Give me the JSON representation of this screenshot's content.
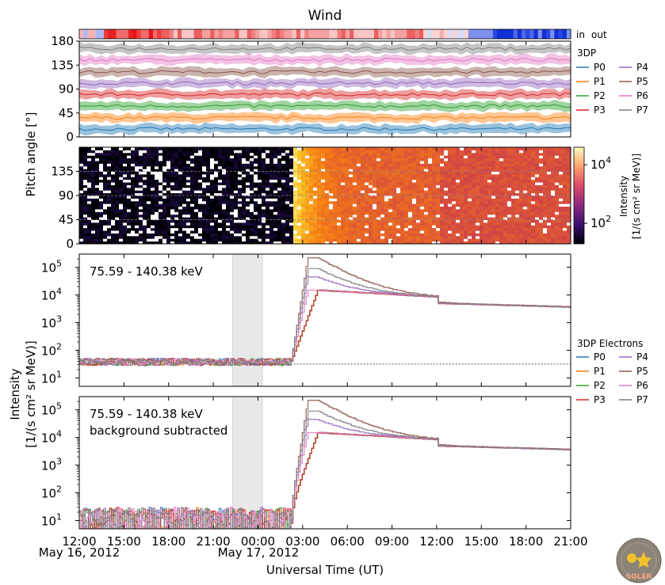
{
  "figure": {
    "title": "Wind",
    "inout": {
      "in": "in",
      "out": "out",
      "in_color": "#e8121b",
      "out_color": "#1030d8"
    },
    "logo": {
      "name": "SOLER",
      "text": "SOLER"
    }
  },
  "chart_data": [
    {
      "panel": "pitch-angle-coverage",
      "type": "area",
      "ylabel": "Pitch angle [°]",
      "ylim": [
        0,
        180
      ],
      "yticks": [
        "0",
        "45",
        "90",
        "135",
        "180"
      ],
      "legend": {
        "title": "3DP",
        "entries": [
          "P0",
          "P1",
          "P2",
          "P3",
          "P4",
          "P5",
          "P6",
          "P7"
        ],
        "placement": "right"
      },
      "series": [
        {
          "name": "P0",
          "color": "#1f77b4",
          "center": 15,
          "width": 16
        },
        {
          "name": "P1",
          "color": "#ff7f0e",
          "center": 36,
          "width": 16
        },
        {
          "name": "P2",
          "color": "#2ca02c",
          "center": 58,
          "width": 16
        },
        {
          "name": "P3",
          "color": "#d62728",
          "center": 80,
          "width": 16
        },
        {
          "name": "P4",
          "color": "#9467bd",
          "center": 101,
          "width": 16
        },
        {
          "name": "P5",
          "color": "#8c564b",
          "center": 122,
          "width": 16
        },
        {
          "name": "P6",
          "color": "#e377c2",
          "center": 145,
          "width": 16
        },
        {
          "name": "P7",
          "color": "#7f7f7f",
          "center": 166,
          "width": 16
        }
      ]
    },
    {
      "panel": "pitch-angle-spectrogram",
      "type": "heatmap",
      "ylabel": "Pitch angle [°]",
      "ylim": [
        0,
        180
      ],
      "yticks": [
        "0",
        "45",
        "90",
        "135"
      ],
      "colorbar": {
        "label": "Intensity",
        "units": "[1/(s cm² sr MeV)]",
        "tick_low": "10",
        "tick_low_exp": "2",
        "tick_high": "10",
        "tick_high_exp": "4",
        "range_log": [
          1.3,
          4.6
        ]
      },
      "onset_hours": 14.2,
      "pre_level_log": 1.4,
      "peak_level_log": 4.4,
      "late_level_log": 3.4
    },
    {
      "panel": "intensity",
      "type": "line",
      "annotation": "75.59 - 140.38 keV",
      "ylabel": "Intensity",
      "yunits": "[1/(s cm² sr MeV)]",
      "yscale": "log",
      "ylim": [
        5,
        300000
      ],
      "yticks": [
        "10",
        "10",
        "10",
        "10",
        "10"
      ],
      "ytick_exponents": [
        "1",
        "2",
        "3",
        "4",
        "5"
      ],
      "background_level": 32,
      "background_window_hours": [
        10.3,
        12.3
      ],
      "legend": {
        "title": "3DP Electrons",
        "entries": [
          "P0",
          "P1",
          "P2",
          "P3",
          "P4",
          "P5",
          "P6",
          "P7"
        ],
        "placement": "right"
      },
      "profile": {
        "pre": 38,
        "onset_hours": 14.2,
        "rise_end_hours": 16.0,
        "plateau": 15000,
        "late": 5000,
        "peak_high": 220000,
        "peak_mid": 90000,
        "peak_low": 45000
      }
    },
    {
      "panel": "intensity-background-subtracted",
      "type": "line",
      "annotation_line1": "75.59 - 140.38 keV",
      "annotation_line2": "background subtracted",
      "yscale": "log",
      "ylim": [
        5,
        300000
      ],
      "yticks": [
        "10",
        "10",
        "10",
        "10",
        "10"
      ],
      "ytick_exponents": [
        "1",
        "2",
        "3",
        "4",
        "5"
      ],
      "background_window_hours": [
        10.3,
        12.3
      ]
    }
  ],
  "xaxis": {
    "label": "Universal Time (UT)",
    "range_hours": [
      0,
      33
    ],
    "tick_labels": [
      "12:00",
      "15:00",
      "18:00",
      "21:00",
      "00:00",
      "03:00",
      "06:00",
      "09:00",
      "12:00",
      "15:00",
      "18:00",
      "21:00"
    ],
    "date_labels": [
      "May 16, 2012",
      "May 17, 2012"
    ]
  },
  "colors": {
    "P0": "#1f77b4",
    "P1": "#ff7f0e",
    "P2": "#2ca02c",
    "P3": "#d62728",
    "P4": "#9467bd",
    "P5": "#8c564b",
    "P6": "#e377c2",
    "P7": "#7f7f7f"
  }
}
